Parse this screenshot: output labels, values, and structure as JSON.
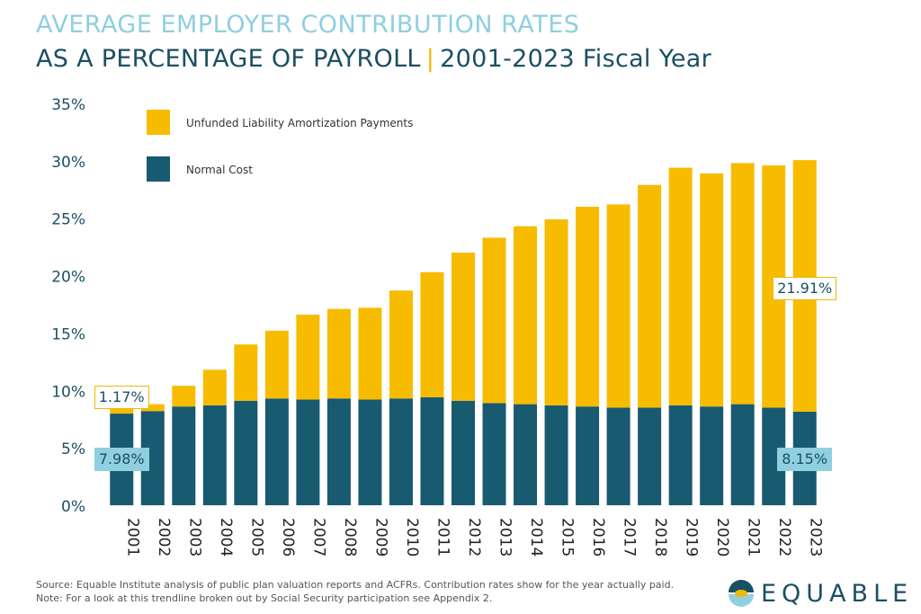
{
  "title": {
    "line1": "AVERAGE EMPLOYER CONTRIBUTION  RATES",
    "line2_main": "AS A PERCENTAGE OF PAYROLL",
    "line2_sep": "|",
    "line2_sub": "2001-2023 Fiscal Year"
  },
  "colors": {
    "unfunded": "#f7bc00",
    "normal": "#185a70",
    "title_light": "#8fcfe0",
    "title_dark": "#1b4f63",
    "callout_fill": "#8fcfe0"
  },
  "chart_data": {
    "type": "bar",
    "stacked": true,
    "categories": [
      "2001",
      "2002",
      "2003",
      "2004",
      "2005",
      "2006",
      "2007",
      "2008",
      "2009",
      "2010",
      "2011",
      "2012",
      "2013",
      "2014",
      "2015",
      "2016",
      "2017",
      "2018",
      "2019",
      "2020",
      "2021",
      "2022",
      "2023"
    ],
    "series": [
      {
        "name": "Normal Cost",
        "values": [
          7.98,
          8.2,
          8.6,
          8.7,
          9.1,
          9.3,
          9.2,
          9.3,
          9.2,
          9.3,
          9.4,
          9.1,
          8.9,
          8.8,
          8.7,
          8.6,
          8.5,
          8.5,
          8.7,
          8.6,
          8.8,
          8.5,
          8.15
        ]
      },
      {
        "name": "Unfunded Liability Amortization Payments",
        "values": [
          1.17,
          0.6,
          1.8,
          3.1,
          4.9,
          5.9,
          7.4,
          7.8,
          8.0,
          9.4,
          10.9,
          12.9,
          14.4,
          15.5,
          16.2,
          17.4,
          17.7,
          19.4,
          20.7,
          20.3,
          21.0,
          21.1,
          21.91
        ]
      }
    ],
    "legend_order": [
      "Unfunded Liability Amortization Payments",
      "Normal Cost"
    ],
    "ylim": [
      0,
      35
    ],
    "yticks": [
      "0%",
      "5%",
      "10%",
      "15%",
      "20%",
      "25%",
      "30%",
      "35%"
    ],
    "xlabel": "",
    "ylabel": "",
    "legend_position": "top-left",
    "grid": false,
    "annotations": {
      "first_unfunded": "1.17%",
      "first_normal": "7.98%",
      "last_unfunded": "21.91%",
      "last_normal": "8.15%"
    }
  },
  "footnote": {
    "source": "Source: Equable Institute analysis of public plan valuation reports and ACFRs. Contribution rates show for the year actually paid.",
    "note": "Note: For a look at this trendline broken out by Social Security participation see Appendix 2."
  },
  "brand": {
    "name": "EQUABLE",
    "icon": "equable-logo-icon"
  }
}
